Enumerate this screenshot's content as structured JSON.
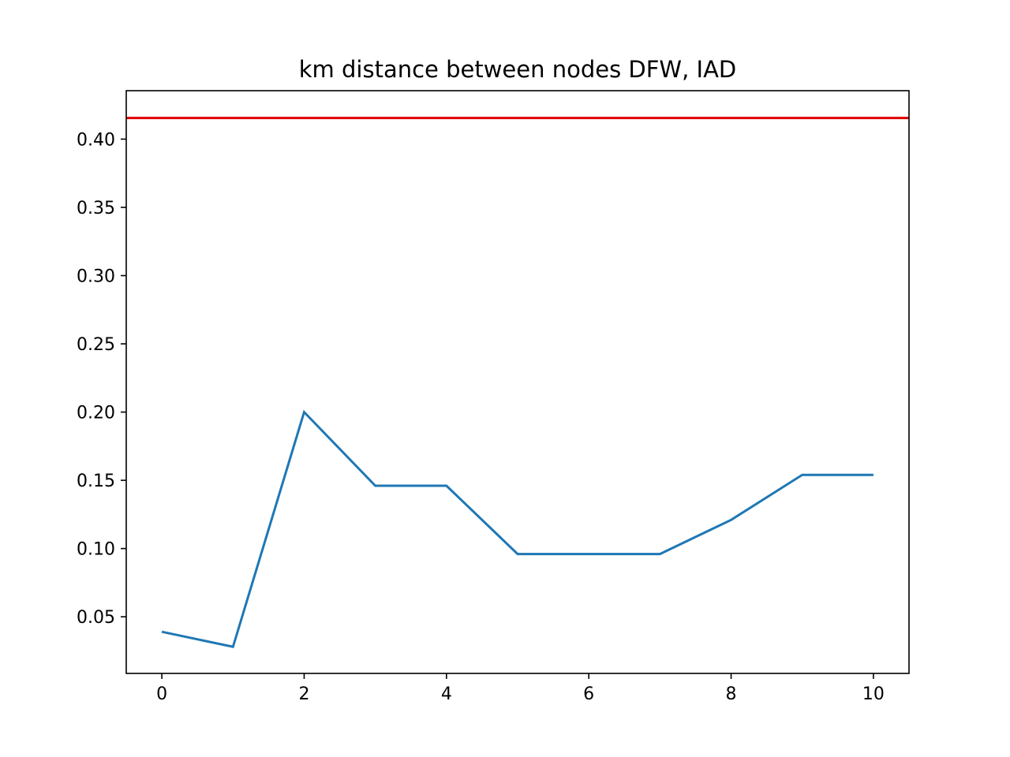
{
  "chart_data": {
    "type": "line",
    "title": "km distance between nodes DFW, IAD",
    "xlabel": "",
    "ylabel": "",
    "xlim": [
      -0.5,
      10.5
    ],
    "ylim": [
      0.0085,
      0.4355
    ],
    "x_ticks": [
      0,
      2,
      4,
      6,
      8,
      10
    ],
    "x_tick_labels": [
      "0",
      "2",
      "4",
      "6",
      "8",
      "10"
    ],
    "y_ticks": [
      0.05,
      0.1,
      0.15,
      0.2,
      0.25,
      0.3,
      0.35,
      0.4
    ],
    "y_tick_labels": [
      "0.05",
      "0.10",
      "0.15",
      "0.20",
      "0.25",
      "0.30",
      "0.35",
      "0.40"
    ],
    "grid": false,
    "series": [
      {
        "color": "#1f77b4",
        "x": [
          0,
          1,
          2,
          3,
          4,
          5,
          6,
          7,
          8,
          9,
          10
        ],
        "values": [
          0.039,
          0.028,
          0.2,
          0.146,
          0.146,
          0.096,
          0.096,
          0.096,
          0.121,
          0.154,
          0.154
        ]
      }
    ],
    "hlines": [
      {
        "y": 0.4155,
        "color": "#e00000"
      }
    ]
  }
}
